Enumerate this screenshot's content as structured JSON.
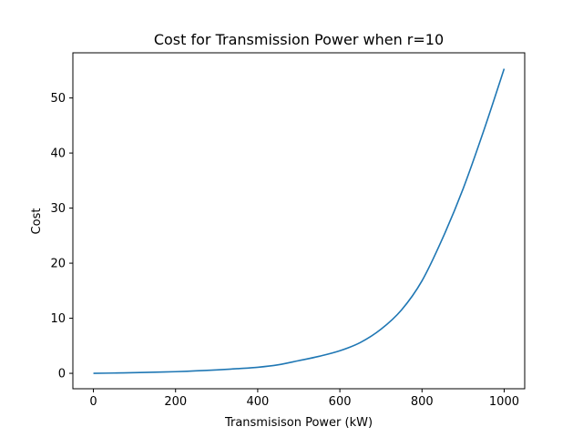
{
  "chart_data": {
    "type": "line",
    "title": "Cost for Transmission Power when r=10",
    "xlabel": "Transmisison Power (kW)",
    "ylabel": "Cost",
    "xlim": [
      -50,
      1050
    ],
    "ylim": [
      -2.8,
      58.2
    ],
    "grid": false,
    "xticks": [
      0,
      200,
      400,
      600,
      800,
      1000
    ],
    "yticks": [
      0,
      10,
      20,
      30,
      40,
      50
    ],
    "series": [
      {
        "color": "#1f77b4",
        "x": [
          0,
          50,
          100,
          150,
          200,
          250,
          300,
          350,
          400,
          450,
          500,
          550,
          600,
          650,
          700,
          750,
          800,
          850,
          900,
          950,
          1000
        ],
        "y": [
          0.0,
          0.05,
          0.12,
          0.2,
          0.3,
          0.45,
          0.62,
          0.85,
          1.1,
          1.55,
          2.3,
          3.1,
          4.1,
          5.6,
          8.0,
          11.5,
          16.8,
          24.5,
          33.5,
          44.0,
          55.3
        ]
      }
    ]
  }
}
